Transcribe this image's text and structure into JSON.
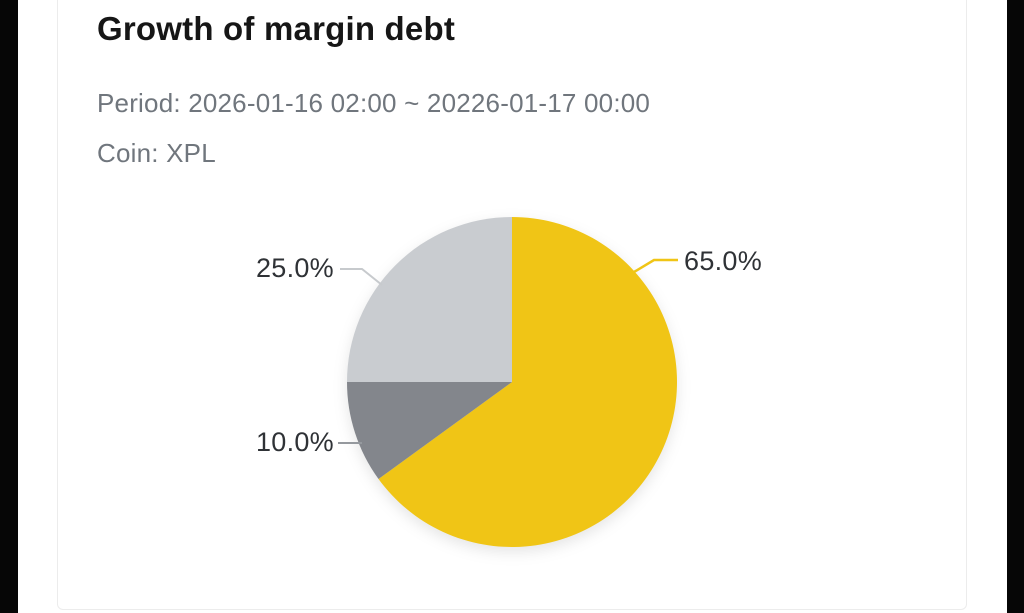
{
  "card": {
    "title": "Growth of margin debt",
    "period_line": "Period: 2026-01-16 02:00 ~ 20226-01-17 00:00",
    "coin_line": "Coin: XPL"
  },
  "chart_data": {
    "type": "pie",
    "title": "Growth of margin debt",
    "subtitle_lines": [
      "Period: 2026-01-16 02:00 ~ 20226-01-17 00:00",
      "Coin: XPL"
    ],
    "direction": "clockwise",
    "start_angle": "12-oclock",
    "unit": "%",
    "slices": [
      {
        "label": "65.0%",
        "value": 65.0,
        "color": "#F0C516"
      },
      {
        "label": "10.0%",
        "value": 10.0,
        "color": "#83868C"
      },
      {
        "label": "25.0%",
        "value": 25.0,
        "color": "#C9CCD0"
      }
    ],
    "leader_line_colors": {
      "65.0%": "#F0C516",
      "25.0%": "#C7CACD",
      "10.0%": "#95999E"
    }
  }
}
